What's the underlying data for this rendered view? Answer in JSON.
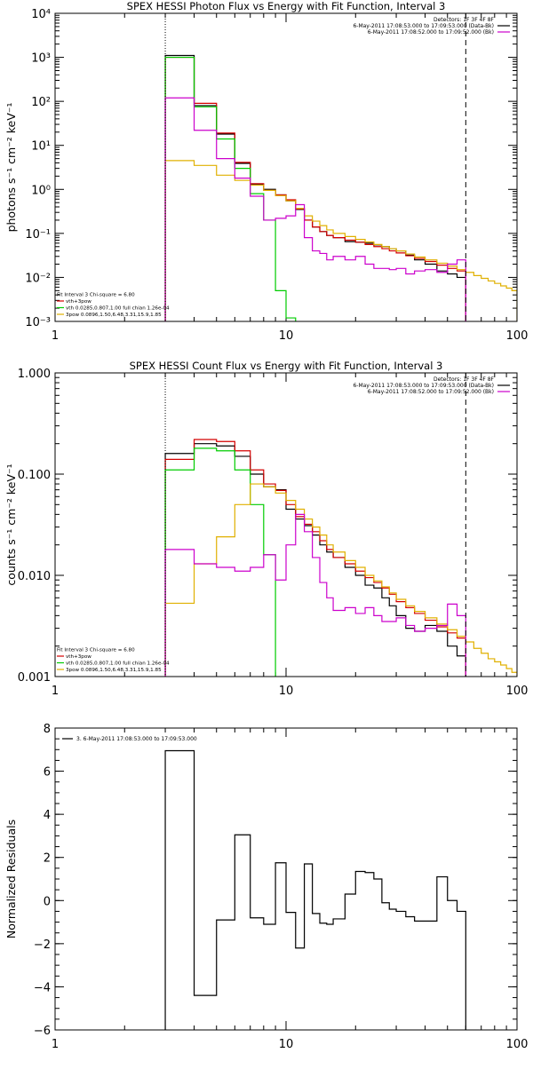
{
  "chart_data": [
    {
      "type": "line",
      "title": "SPEX HESSI Photon Flux vs Energy with Fit Function, Interval 3",
      "ylabel": "photons s⁻¹ cm⁻² keV⁻¹",
      "xlabel": "",
      "xscale": "log",
      "yscale": "log",
      "xlim": [
        1,
        100
      ],
      "ylim": [
        0.001,
        10000
      ],
      "x_ticks": [
        {
          "v": 1,
          "label": "1"
        },
        {
          "v": 10,
          "label": "10"
        },
        {
          "v": 100,
          "label": "100"
        }
      ],
      "y_ticks": [
        {
          "v": 0.001,
          "label": "10⁻³"
        },
        {
          "v": 0.01,
          "label": "10⁻²"
        },
        {
          "v": 0.1,
          "label": "10⁻¹"
        },
        {
          "v": 1,
          "label": "10⁰"
        },
        {
          "v": 10,
          "label": "10¹"
        },
        {
          "v": 100,
          "label": "10²"
        },
        {
          "v": 1000,
          "label": "10³"
        },
        {
          "v": 10000,
          "label": "10⁴"
        }
      ],
      "vlines": [
        {
          "x": 3,
          "style": "dotted",
          "color": "#000000"
        },
        {
          "x": 60,
          "style": "dashed",
          "color": "#000000"
        }
      ],
      "legend_top": {
        "placement": "top-right",
        "lines": [
          {
            "text": "Detectors: 1F 3F 4F 8F",
            "color": null
          },
          {
            "text": "6-May-2011 17:08:53.000 to 17:09:53.000 (Data-Bk)",
            "color": "#000000"
          },
          {
            "text": "6-May-2011 17:08:52.000 to 17:09:52.000 (Bk)",
            "color": "#cc00cc"
          }
        ]
      },
      "legend_bottom": {
        "placement": "bottom-left",
        "lines": [
          {
            "text": "Fit Interval 3   Chi-square = 6.80",
            "color": null
          },
          {
            "text": "vth+3pow",
            "color": "#d40000"
          },
          {
            "text": "vth 0.0285,0.807,1.00  full chian 1.26e-04",
            "color": "#00cc00"
          },
          {
            "text": "3pow 0.0896,1.50,6.48,3.31,15.9,1.85",
            "color": "#e0b000"
          }
        ]
      },
      "series": [
        {
          "color": "#000000",
          "edges": [
            3,
            4,
            5,
            6,
            7,
            8,
            9,
            10,
            11,
            12,
            13,
            14,
            15,
            16,
            18,
            20,
            22,
            24,
            26,
            28,
            30,
            33,
            36,
            40,
            45,
            50,
            55,
            60
          ],
          "values": [
            1100,
            80,
            18,
            3.9,
            1.3,
            1.0,
            0.75,
            0.55,
            0.35,
            0.2,
            0.14,
            0.11,
            0.09,
            0.08,
            0.065,
            0.063,
            0.06,
            0.055,
            0.05,
            0.045,
            0.04,
            0.032,
            0.025,
            0.02,
            0.014,
            0.012,
            0.01
          ]
        },
        {
          "color": "#d40000",
          "edges": [
            3,
            4,
            5,
            6,
            7,
            8,
            9,
            10,
            11,
            12,
            13,
            14,
            15,
            16,
            18,
            20,
            22,
            24,
            26,
            28,
            30,
            33,
            36,
            40,
            45,
            50,
            55,
            60
          ],
          "values": [
            1000,
            90,
            19,
            4.1,
            1.35,
            0.95,
            0.75,
            0.58,
            0.36,
            0.2,
            0.14,
            0.11,
            0.09,
            0.08,
            0.07,
            0.063,
            0.056,
            0.05,
            0.045,
            0.04,
            0.036,
            0.031,
            0.027,
            0.023,
            0.019,
            0.016,
            0.014
          ]
        },
        {
          "color": "#00cc00",
          "edges": [
            3,
            4,
            5,
            6,
            7,
            8,
            9,
            10,
            11
          ],
          "values": [
            1000,
            75,
            14,
            3.0,
            0.8,
            0.2,
            0.005,
            0.0012
          ]
        },
        {
          "color": "#e0b000",
          "edges": [
            3,
            4,
            5,
            6,
            7,
            8,
            9,
            10,
            11,
            12,
            13,
            14,
            15,
            16,
            18,
            20,
            22,
            24,
            26,
            28,
            30,
            33,
            36,
            40,
            45,
            50,
            55,
            60,
            65,
            70,
            75,
            80,
            85,
            90,
            95,
            100
          ],
          "values": [
            4.5,
            3.5,
            2.1,
            1.6,
            1.25,
            0.95,
            0.72,
            0.55,
            0.37,
            0.25,
            0.19,
            0.15,
            0.12,
            0.1,
            0.085,
            0.073,
            0.064,
            0.056,
            0.05,
            0.045,
            0.04,
            0.034,
            0.029,
            0.025,
            0.021,
            0.018,
            0.015,
            0.013,
            0.011,
            0.0095,
            0.0083,
            0.0073,
            0.0064,
            0.0057,
            0.005
          ]
        },
        {
          "color": "#cc00cc",
          "edges": [
            3,
            4,
            5,
            6,
            7,
            8,
            9,
            10,
            11,
            12,
            13,
            14,
            15,
            16,
            18,
            20,
            22,
            24,
            26,
            28,
            30,
            33,
            36,
            40,
            45,
            50,
            55,
            60
          ],
          "values": [
            120,
            22,
            5,
            1.8,
            0.7,
            0.2,
            0.22,
            0.25,
            0.45,
            0.08,
            0.04,
            0.035,
            0.025,
            0.03,
            0.025,
            0.03,
            0.02,
            0.016,
            0.016,
            0.015,
            0.016,
            0.012,
            0.014,
            0.015,
            0.013,
            0.02,
            0.025
          ]
        }
      ]
    },
    {
      "type": "line",
      "title": "SPEX HESSI Count Flux vs Energy with Fit Function, Interval 3",
      "ylabel": "counts s⁻¹ cm⁻² keV⁻¹",
      "xlabel": "",
      "xscale": "log",
      "yscale": "log",
      "xlim": [
        1,
        100
      ],
      "ylim": [
        0.001,
        1
      ],
      "x_ticks": [
        {
          "v": 1,
          "label": "1"
        },
        {
          "v": 10,
          "label": "10"
        },
        {
          "v": 100,
          "label": "100"
        }
      ],
      "y_ticks": [
        {
          "v": 0.001,
          "label": "0.001"
        },
        {
          "v": 0.01,
          "label": "0.010"
        },
        {
          "v": 0.1,
          "label": "0.100"
        },
        {
          "v": 1,
          "label": "1.000"
        }
      ],
      "vlines": [
        {
          "x": 3,
          "style": "dotted",
          "color": "#000000"
        },
        {
          "x": 60,
          "style": "dashed",
          "color": "#000000"
        }
      ],
      "legend_top": {
        "placement": "top-right",
        "lines": [
          {
            "text": "Detectors: 1F 3F 4F 8F",
            "color": null
          },
          {
            "text": "6-May-2011 17:08:53.000 to 17:09:53.000 (Data-Bk)",
            "color": "#000000"
          },
          {
            "text": "6-May-2011 17:08:52.000 to 17:09:52.000 (Bk)",
            "color": "#cc00cc"
          }
        ]
      },
      "legend_bottom": {
        "placement": "bottom-left",
        "lines": [
          {
            "text": "Fit Interval 3   Chi-square = 6.80",
            "color": null
          },
          {
            "text": "vth+3pow",
            "color": "#d40000"
          },
          {
            "text": "vth 0.0285,0.807,1.00  full chian 1.26e-04",
            "color": "#00cc00"
          },
          {
            "text": "3pow 0.0896,1.50,6.48,3.31,15.9,1.85",
            "color": "#e0b000"
          }
        ]
      },
      "series": [
        {
          "color": "#000000",
          "edges": [
            3,
            4,
            5,
            6,
            7,
            8,
            9,
            10,
            11,
            12,
            13,
            14,
            15,
            16,
            18,
            20,
            22,
            24,
            26,
            28,
            30,
            33,
            36,
            40,
            45,
            50,
            55,
            60
          ],
          "values": [
            0.16,
            0.2,
            0.19,
            0.15,
            0.1,
            0.075,
            0.07,
            0.045,
            0.036,
            0.031,
            0.025,
            0.02,
            0.017,
            0.015,
            0.012,
            0.01,
            0.008,
            0.0075,
            0.006,
            0.005,
            0.004,
            0.003,
            0.0028,
            0.0032,
            0.0028,
            0.002,
            0.0016
          ]
        },
        {
          "color": "#d40000",
          "edges": [
            3,
            4,
            5,
            6,
            7,
            8,
            9,
            10,
            11,
            12,
            13,
            14,
            15,
            16,
            18,
            20,
            22,
            24,
            26,
            28,
            30,
            33,
            36,
            40,
            45,
            50,
            55,
            60
          ],
          "values": [
            0.14,
            0.22,
            0.21,
            0.17,
            0.11,
            0.08,
            0.069,
            0.05,
            0.038,
            0.032,
            0.027,
            0.022,
            0.018,
            0.015,
            0.013,
            0.011,
            0.0095,
            0.0085,
            0.0075,
            0.0065,
            0.0055,
            0.0048,
            0.0042,
            0.0036,
            0.0031,
            0.0027,
            0.0024
          ]
        },
        {
          "color": "#00cc00",
          "edges": [
            3,
            4,
            5,
            6,
            7,
            8,
            9
          ],
          "values": [
            0.11,
            0.18,
            0.17,
            0.11,
            0.05,
            0.016
          ]
        },
        {
          "color": "#e0b000",
          "edges": [
            3,
            4,
            5,
            6,
            7,
            8,
            9,
            10,
            11,
            12,
            13,
            14,
            15,
            16,
            18,
            20,
            22,
            24,
            26,
            28,
            30,
            33,
            36,
            40,
            45,
            50,
            55,
            60,
            65,
            70,
            75,
            80,
            85,
            90,
            95,
            100
          ],
          "values": [
            0.0053,
            0.013,
            0.024,
            0.05,
            0.08,
            0.075,
            0.065,
            0.055,
            0.045,
            0.036,
            0.03,
            0.025,
            0.02,
            0.017,
            0.014,
            0.012,
            0.01,
            0.0088,
            0.0077,
            0.0067,
            0.0058,
            0.005,
            0.0044,
            0.0038,
            0.0033,
            0.0029,
            0.0025,
            0.0022,
            0.0019,
            0.0017,
            0.0015,
            0.0014,
            0.0013,
            0.0012,
            0.0011
          ]
        },
        {
          "color": "#cc00cc",
          "edges": [
            3,
            4,
            5,
            6,
            7,
            8,
            9,
            10,
            11,
            12,
            13,
            14,
            15,
            16,
            18,
            20,
            22,
            24,
            26,
            28,
            30,
            33,
            36,
            40,
            45,
            50,
            55,
            60
          ],
          "values": [
            0.018,
            0.013,
            0.012,
            0.011,
            0.012,
            0.016,
            0.009,
            0.02,
            0.04,
            0.027,
            0.015,
            0.0085,
            0.006,
            0.0045,
            0.0048,
            0.0042,
            0.0048,
            0.004,
            0.0035,
            0.0035,
            0.0038,
            0.0032,
            0.0028,
            0.003,
            0.0032,
            0.0052,
            0.004
          ]
        }
      ]
    },
    {
      "type": "line",
      "title": "",
      "ylabel": "Normalized Residuals",
      "xlabel": "",
      "xscale": "log",
      "yscale": "linear",
      "xlim": [
        1,
        100
      ],
      "ylim": [
        -6,
        8
      ],
      "x_ticks": [
        {
          "v": 1,
          "label": "1"
        },
        {
          "v": 10,
          "label": "10"
        },
        {
          "v": 100,
          "label": "100"
        }
      ],
      "y_ticks": [
        {
          "v": -6,
          "label": "−6"
        },
        {
          "v": -4,
          "label": "−4"
        },
        {
          "v": -2,
          "label": "−2"
        },
        {
          "v": 0,
          "label": "0"
        },
        {
          "v": 2,
          "label": "2"
        },
        {
          "v": 4,
          "label": "4"
        },
        {
          "v": 6,
          "label": "6"
        },
        {
          "v": 8,
          "label": "8"
        }
      ],
      "vlines": [],
      "legend_top": {
        "placement": "top-left",
        "lines": [
          {
            "text": "3. 6-May-2011 17:08:53.000 to 17:09:53.000",
            "color": "#000000"
          }
        ]
      },
      "legend_bottom": null,
      "series": [
        {
          "color": "#000000",
          "drop_to_floor": true,
          "edges": [
            3,
            4,
            5,
            6,
            7,
            8,
            9,
            10,
            11,
            12,
            13,
            14,
            15,
            16,
            18,
            20,
            22,
            24,
            26,
            28,
            30,
            33,
            36,
            40,
            45,
            50,
            55,
            60
          ],
          "values": [
            6.95,
            -4.4,
            -0.9,
            3.05,
            -0.8,
            -1.1,
            1.75,
            -0.55,
            -2.2,
            1.7,
            -0.6,
            -1.05,
            -1.1,
            -0.85,
            0.3,
            1.35,
            1.3,
            1.0,
            -0.1,
            -0.4,
            -0.5,
            -0.75,
            -0.95,
            -0.95,
            1.1,
            0.0,
            -0.5
          ]
        }
      ]
    }
  ]
}
